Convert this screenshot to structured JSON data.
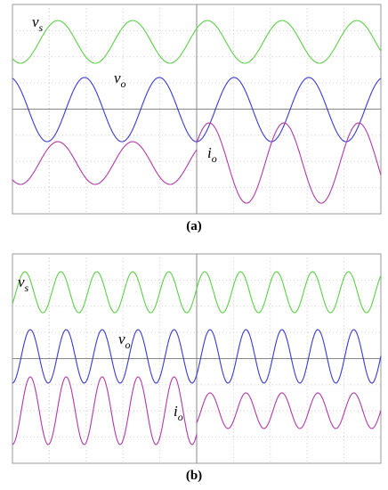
{
  "panels": [
    {
      "caption": "(a)",
      "traces": [
        {
          "symbol": "v",
          "subscript": "s"
        },
        {
          "symbol": "v",
          "subscript": "o"
        },
        {
          "symbol": "i",
          "subscript": "o"
        }
      ]
    },
    {
      "caption": "(b)",
      "traces": [
        {
          "symbol": "v",
          "subscript": "s"
        },
        {
          "symbol": "v",
          "subscript": "o"
        },
        {
          "symbol": "i",
          "subscript": "o"
        }
      ]
    }
  ]
}
